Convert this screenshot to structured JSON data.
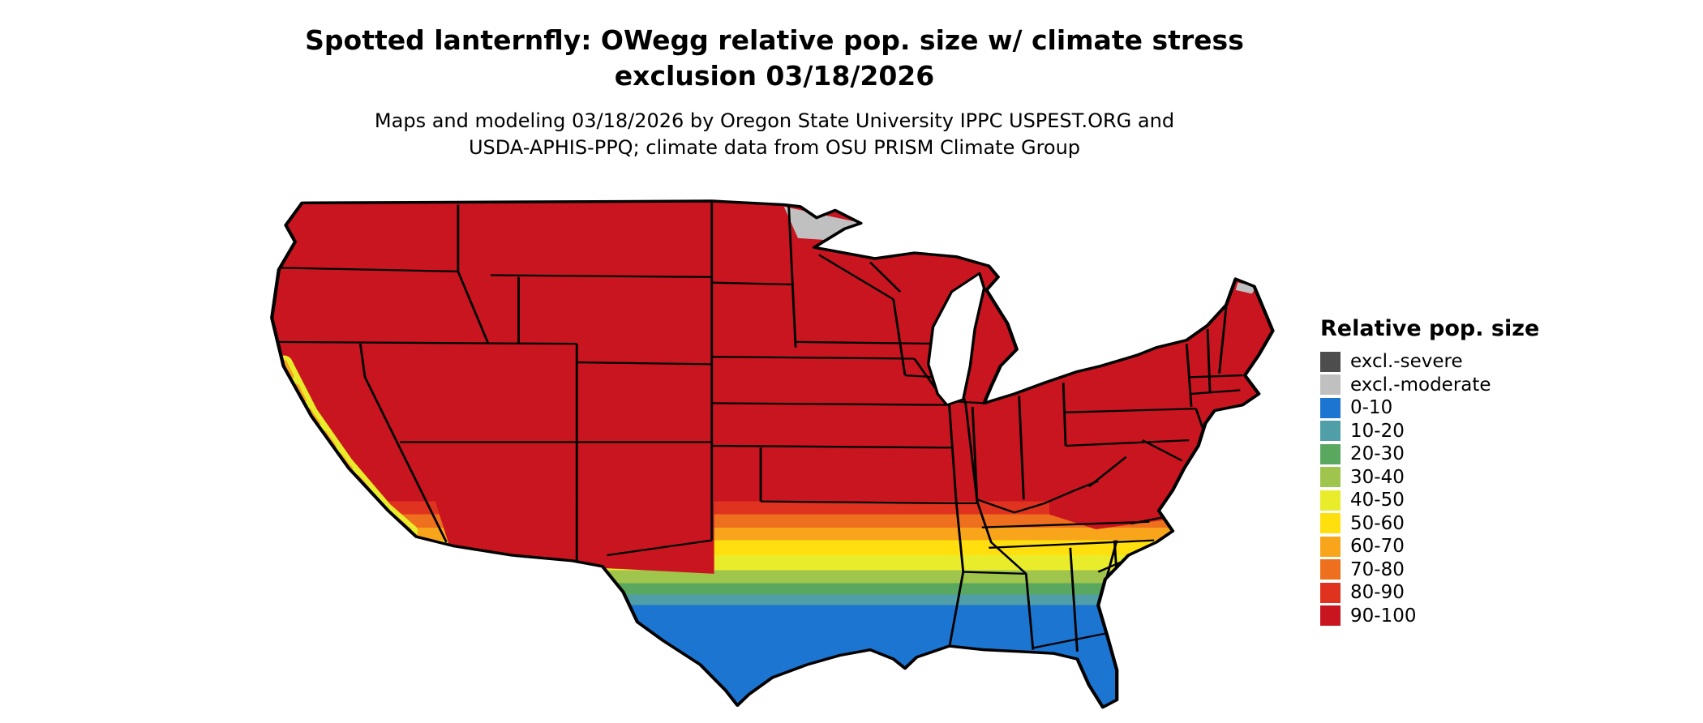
{
  "header": {
    "title_line1": "Spotted lanternfly: OWegg relative pop. size w/ climate stress",
    "title_line2": "exclusion 03/18/2026",
    "subtitle_line1": "Maps and modeling 03/18/2026 by Oregon State University IPPC USPEST.ORG and",
    "subtitle_line2": "USDA-APHIS-PPQ; climate data from OSU PRISM Climate Group"
  },
  "legend": {
    "title": "Relative pop. size",
    "items": [
      {
        "label": "excl.-severe",
        "color": "#4d4d4d"
      },
      {
        "label": "excl.-moderate",
        "color": "#c0c0c0"
      },
      {
        "label": "0-10",
        "color": "#1b75d1"
      },
      {
        "label": "10-20",
        "color": "#4f9ea8"
      },
      {
        "label": "20-30",
        "color": "#5aa860"
      },
      {
        "label": "30-40",
        "color": "#9fc54d"
      },
      {
        "label": "40-50",
        "color": "#e8ec2b"
      },
      {
        "label": "50-60",
        "color": "#ffdf0e"
      },
      {
        "label": "60-70",
        "color": "#f9a51c"
      },
      {
        "label": "70-80",
        "color": "#ee6f1d"
      },
      {
        "label": "80-90",
        "color": "#e0331f"
      },
      {
        "label": "90-100",
        "color": "#c9151f"
      }
    ]
  },
  "map": {
    "region": "Contiguous United States",
    "bands": [
      {
        "label": "90-100",
        "start": 0,
        "end": 0.593
      },
      {
        "label": "80-90",
        "start": 0.593,
        "end": 0.619
      },
      {
        "label": "70-80",
        "start": 0.619,
        "end": 0.645
      },
      {
        "label": "60-70",
        "start": 0.645,
        "end": 0.67
      },
      {
        "label": "50-60",
        "start": 0.67,
        "end": 0.7
      },
      {
        "label": "40-50",
        "start": 0.7,
        "end": 0.729
      },
      {
        "label": "30-40",
        "start": 0.729,
        "end": 0.755
      },
      {
        "label": "20-30",
        "start": 0.755,
        "end": 0.777
      },
      {
        "label": "10-20",
        "start": 0.777,
        "end": 0.798
      },
      {
        "label": "0-10",
        "start": 0.798,
        "end": 1
      }
    ]
  }
}
